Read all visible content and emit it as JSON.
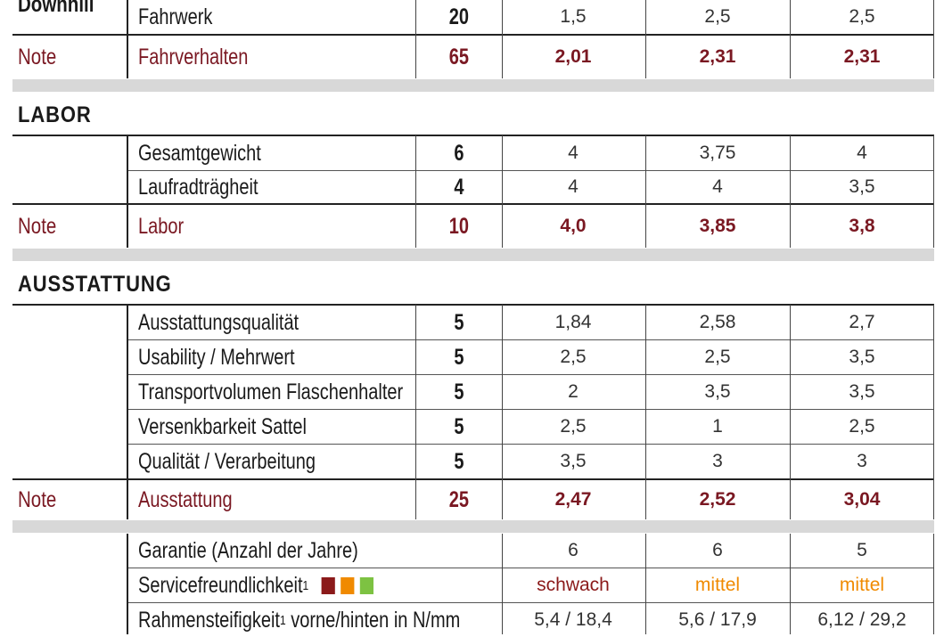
{
  "colors": {
    "note_red": "#7a1822",
    "rating_weak": "#8b1a1a",
    "rating_medium": "#f08a00",
    "rating_good": "#7dc242"
  },
  "top_label": "Downhill",
  "rows_top": [
    {
      "criterion": "Fahrwerk",
      "weight": "20",
      "v1": "1,5",
      "v2": "2,5",
      "v3": "2,5"
    }
  ],
  "note_fahrverhalten": {
    "label": "Note",
    "criterion": "Fahrverhalten",
    "weight": "65",
    "v1": "2,01",
    "v2": "2,31",
    "v3": "2,31"
  },
  "labor": {
    "title": "LABOR",
    "rows": [
      {
        "criterion": "Gesamtgewicht",
        "weight": "6",
        "v1": "4",
        "v2": "3,75",
        "v3": "4"
      },
      {
        "criterion": "Laufradträgheit",
        "weight": "4",
        "v1": "4",
        "v2": "4",
        "v3": "3,5"
      }
    ],
    "note": {
      "label": "Note",
      "criterion": "Labor",
      "weight": "10",
      "v1": "4,0",
      "v2": "3,85",
      "v3": "3,8"
    }
  },
  "ausstattung": {
    "title": "AUSSTATTUNG",
    "rows": [
      {
        "criterion": "Ausstattungsqualität",
        "weight": "5",
        "v1": "1,84",
        "v2": "2,58",
        "v3": "2,7"
      },
      {
        "criterion": "Usability / Mehrwert",
        "weight": "5",
        "v1": "2,5",
        "v2": "2,5",
        "v3": "3,5"
      },
      {
        "criterion": "Transportvolumen Flaschenhalter",
        "weight": "5",
        "v1": "2",
        "v2": "3,5",
        "v3": "3,5"
      },
      {
        "criterion": "Versenkbarkeit Sattel",
        "weight": "5",
        "v1": "2,5",
        "v2": "1",
        "v3": "2,5"
      },
      {
        "criterion": "Qualität / Verarbeitung",
        "weight": "5",
        "v1": "3,5",
        "v2": "3",
        "v3": "3"
      }
    ],
    "note": {
      "label": "Note",
      "criterion": "Ausstattung",
      "weight": "25",
      "v1": "2,47",
      "v2": "2,52",
      "v3": "3,04"
    }
  },
  "extra": {
    "garantie": {
      "criterion": "Garantie (Anzahl der Jahre)",
      "v1": "6",
      "v2": "6",
      "v3": "5"
    },
    "service": {
      "criterion": "Servicefreundlichkeit",
      "sup": "1",
      "v1": "schwach",
      "v2": "mittel",
      "v3": "mittel"
    },
    "steifigkeit": {
      "criterion_a": "Rahmensteifigkeit",
      "sup": "1",
      "criterion_b": " vorne/hinten in N/mm",
      "v1": "5,4 / 18,4",
      "v2": "5,6 / 17,9",
      "v3": "6,12 / 29,2"
    }
  }
}
